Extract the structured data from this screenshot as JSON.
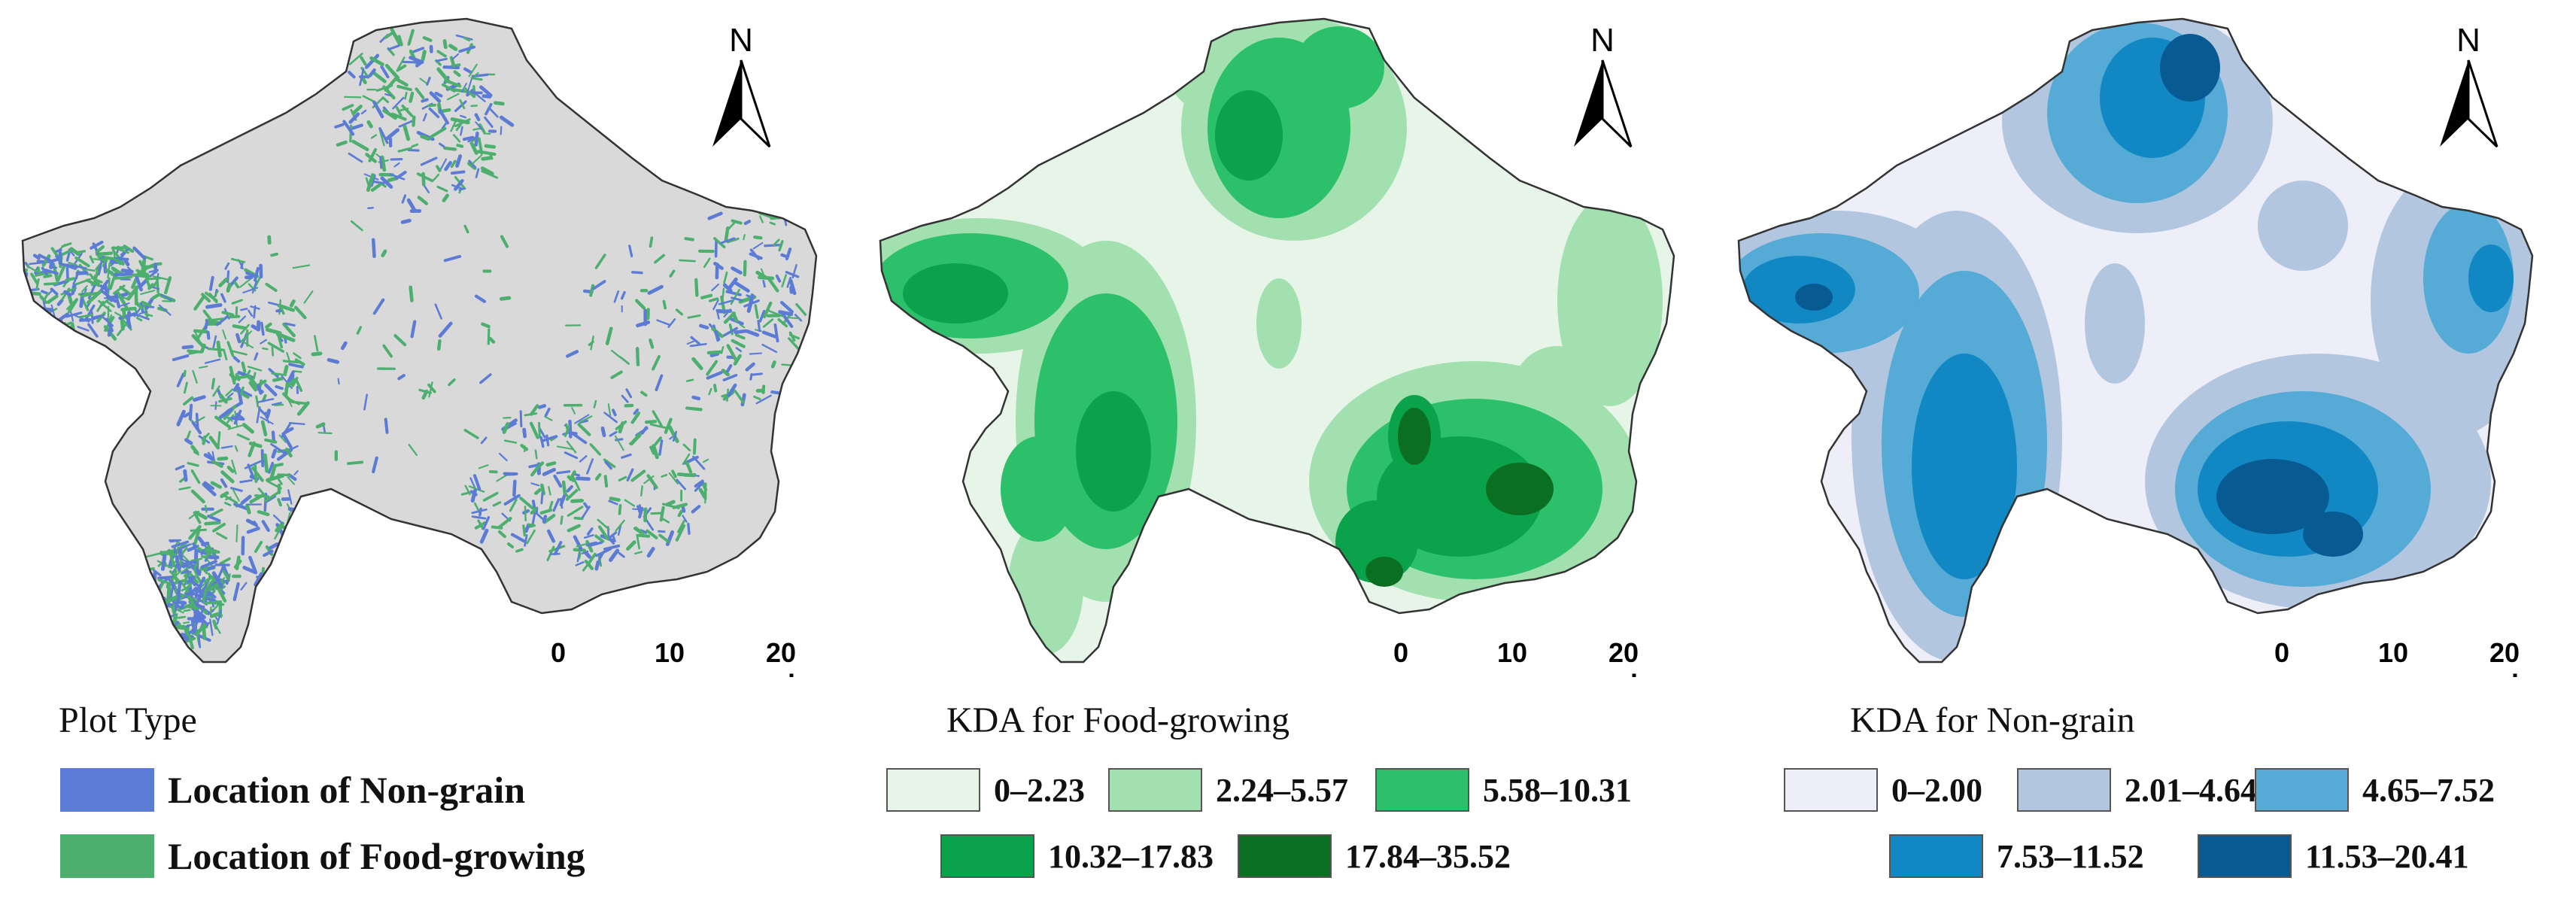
{
  "panels": [
    {
      "legend_title": "Plot Type",
      "legend_items": [
        {
          "label": "Location of Non-grain",
          "color": "#5b7bd5"
        },
        {
          "label": "Location of Food-growing",
          "color": "#4caf6e"
        }
      ],
      "base_color": "#d9d9d9"
    },
    {
      "legend_title": "KDA for Food-growing",
      "legend_items": [
        {
          "label": "0–2.23",
          "color": "#e6f5e8"
        },
        {
          "label": "2.24–5.57",
          "color": "#a3e0b0"
        },
        {
          "label": "5.58–10.31",
          "color": "#2cc06a"
        },
        {
          "label": "10.32–17.83",
          "color": "#0aa24a"
        },
        {
          "label": "17.84–35.52",
          "color": "#0a6e23"
        }
      ]
    },
    {
      "legend_title": "KDA for Non-grain",
      "legend_items": [
        {
          "label": "0–2.00",
          "color": "#eeeef8"
        },
        {
          "label": "2.01–4.64",
          "color": "#b3c6e0"
        },
        {
          "label": "4.65–7.52",
          "color": "#55aad6"
        },
        {
          "label": "7.53–11.52",
          "color": "#1188c4"
        },
        {
          "label": "11.53–20.41",
          "color": "#085b92"
        }
      ]
    }
  ],
  "north_label": "N",
  "scale": {
    "ticks": [
      "0",
      "10",
      "20"
    ],
    "unit": "km"
  }
}
